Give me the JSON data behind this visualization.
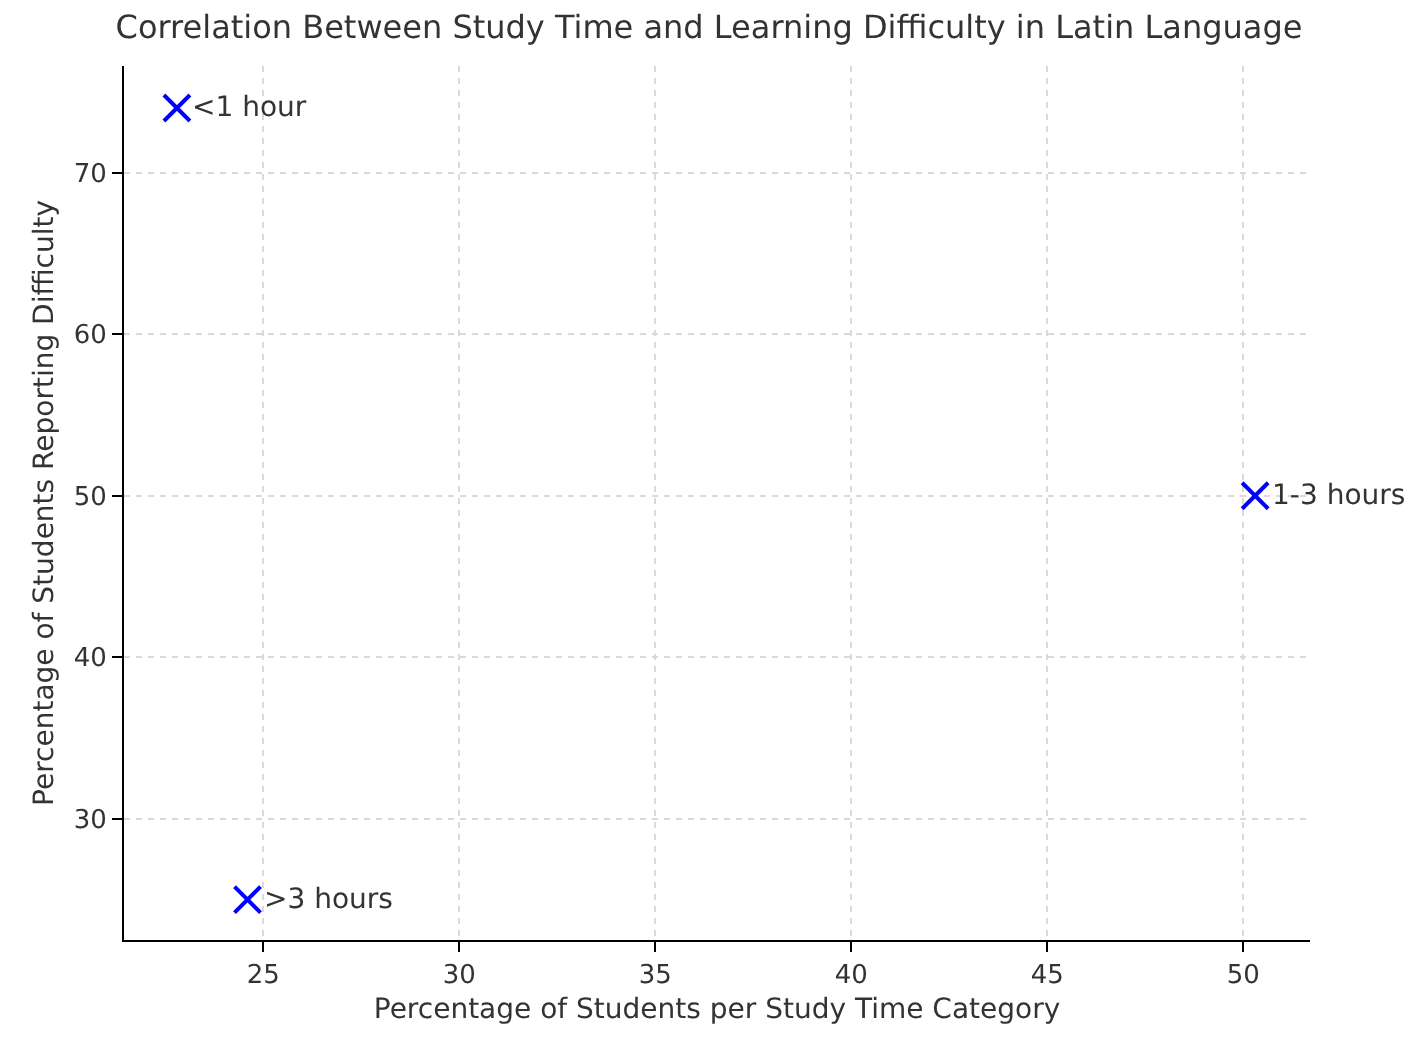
{
  "chart_data": {
    "type": "scatter",
    "title": "Correlation Between Study Time and Learning Difficulty in Latin Language",
    "xlabel": "Percentage of Students per Study Time Category",
    "ylabel": "Percentage of Students Reporting Difficulty",
    "x": [
      22.8,
      50.3,
      24.6
    ],
    "series": [
      {
        "color": "#0000ff",
        "values": [
          74,
          50,
          25
        ]
      }
    ],
    "annotations": [
      {
        "text": "<1 hour",
        "x": 22.8,
        "y": 74
      },
      {
        "text": "1-3 hours",
        "x": 50.3,
        "y": 50
      },
      {
        "text": ">3 hours",
        "x": 24.6,
        "y": 25
      }
    ],
    "xlim": [
      21.45,
      51.7
    ],
    "xticks": [
      25,
      30,
      35,
      40,
      45,
      50
    ],
    "ylim": [
      22.5,
      76.6
    ],
    "yticks": [
      30,
      40,
      50,
      60,
      70
    ],
    "grid": true,
    "marker": "cross"
  }
}
